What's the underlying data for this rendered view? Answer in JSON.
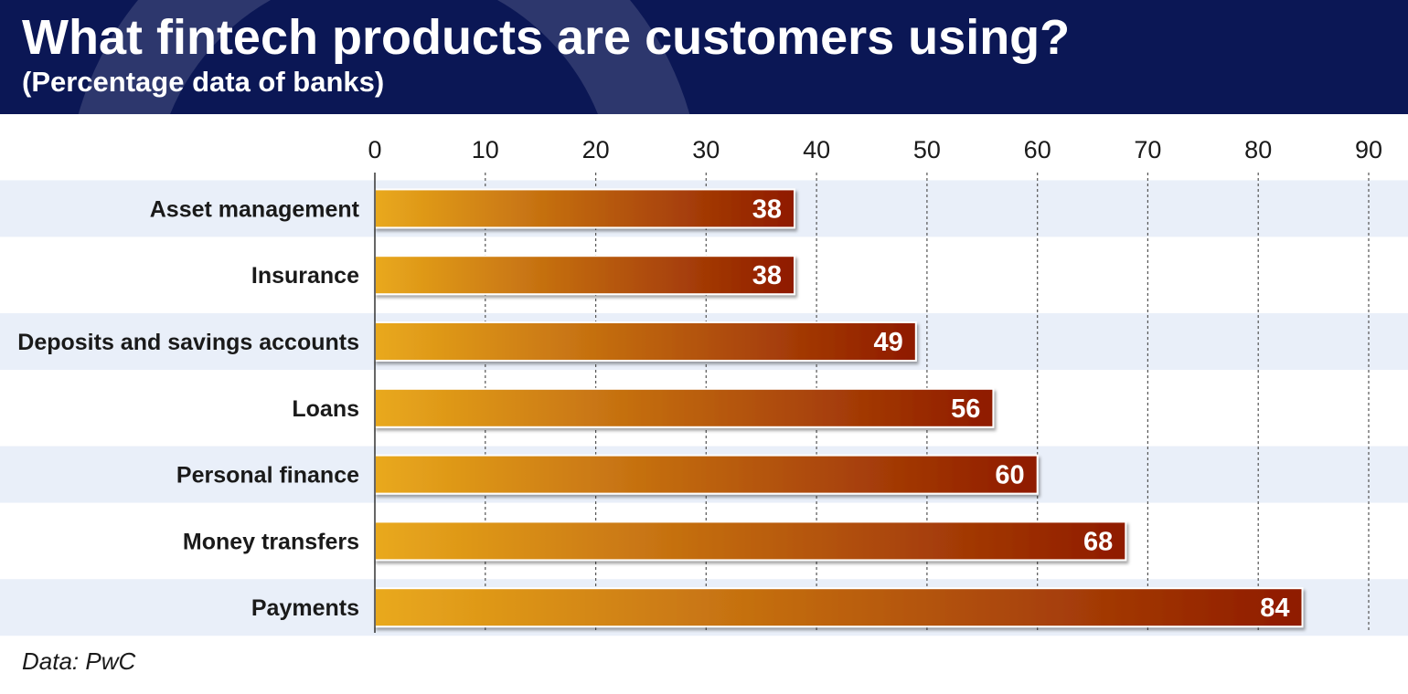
{
  "header": {
    "title": "What fintech products are customers using?",
    "subtitle": "(Percentage data of banks)"
  },
  "source": "Data: PwC",
  "colors": {
    "header_bg": "#0b1755",
    "band": "#e9eff9",
    "bar_start": "#e9a91c",
    "bar_end": "#8f1a00",
    "grid": "#555555",
    "text": "#1a1a1a",
    "value_label": "#ffffff"
  },
  "chart_data": {
    "type": "bar",
    "orientation": "horizontal",
    "categories": [
      "Asset management",
      "Insurance",
      "Deposits and savings accounts",
      "Loans",
      "Personal finance",
      "Money transfers",
      "Payments"
    ],
    "values": [
      38,
      38,
      49,
      56,
      60,
      68,
      84
    ],
    "xlim": [
      0,
      90
    ],
    "x_ticks": [
      "0",
      "10",
      "20",
      "30",
      "40",
      "50",
      "60",
      "70",
      "80",
      "90"
    ],
    "x_tick_position": "top",
    "grid": "vertical-dashed",
    "data_labels": true,
    "alternating_row_bands": true
  }
}
